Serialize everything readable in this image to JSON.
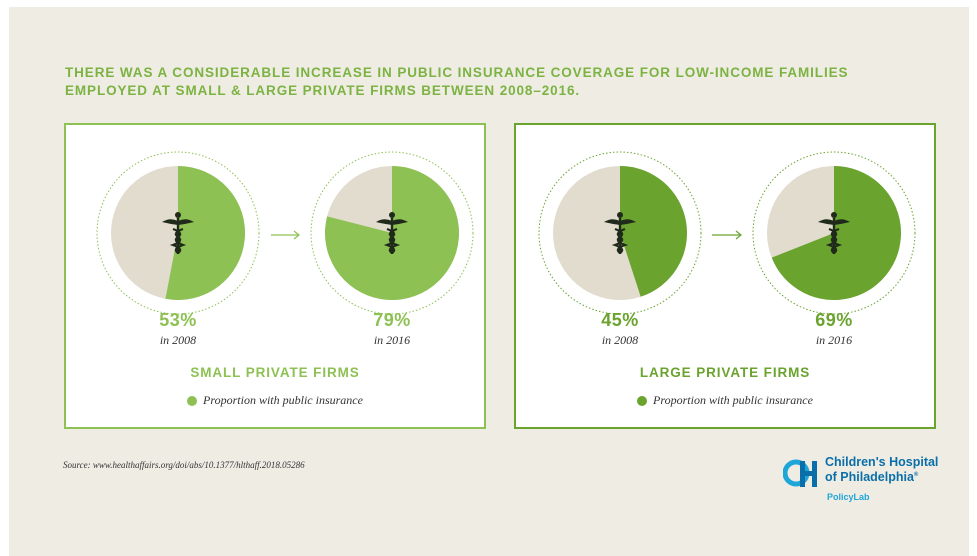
{
  "headline": "THERE WAS A CONSIDERABLE INCREASE IN PUBLIC INSURANCE COVERAGE FOR LOW-INCOME FAMILIES EMPLOYED AT SMALL & LARGE PRIVATE FIRMS BETWEEN 2008–2016.",
  "legend_label": "Proportion with public insurance",
  "source": "Source: www.healthaffairs.org/doi/abs/10.1377/hlthaff.2018.05286",
  "logo": {
    "name_line1": "Children's Hospital",
    "name_line2": "of Philadelphia",
    "trademark": "®",
    "sub": "PolicyLab"
  },
  "colors": {
    "background": "#efece4",
    "small_green": "#8dc153",
    "large_green": "#6aa32e",
    "remainder": "#e2dccf",
    "headline": "#7cb342",
    "logo_blue": "#0a6fa8",
    "logo_light_blue": "#1fa6d8"
  },
  "icons": [
    "caduceus-icon",
    "arrow-right-icon"
  ],
  "chart_data": [
    {
      "type": "pie",
      "title": "SMALL PRIVATE FIRMS",
      "legend": [
        "Proportion with public insurance"
      ],
      "series": [
        {
          "values": [
            53,
            47
          ],
          "pct_label": "53%",
          "year_label": "in 2008"
        },
        {
          "values": [
            79,
            21
          ],
          "pct_label": "79%",
          "year_label": "in 2016"
        }
      ]
    },
    {
      "type": "pie",
      "title": "LARGE PRIVATE FIRMS",
      "legend": [
        "Proportion with public insurance"
      ],
      "series": [
        {
          "values": [
            45,
            55
          ],
          "pct_label": "45%",
          "year_label": "in 2008"
        },
        {
          "values": [
            69,
            31
          ],
          "pct_label": "69%",
          "year_label": "in 2016"
        }
      ]
    }
  ]
}
